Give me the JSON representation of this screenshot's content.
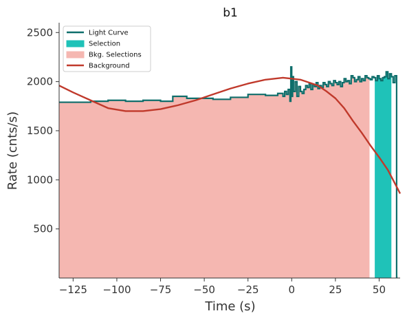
{
  "chart_data": {
    "type": "line",
    "title": "b1",
    "xlabel": "Time (s)",
    "ylabel": "Rate (cnts/s)",
    "xlim": [
      -133,
      62
    ],
    "ylim": [
      0,
      2600
    ],
    "xticks": [
      -125,
      -100,
      -75,
      -50,
      -25,
      0,
      25,
      50
    ],
    "xtick_labels": [
      "−125",
      "−100",
      "−75",
      "−50",
      "−25",
      "0",
      "25",
      "50"
    ],
    "yticks": [
      500,
      1000,
      1500,
      2000,
      2500
    ],
    "ytick_labels": [
      "500",
      "1000",
      "1500",
      "2000",
      "2500"
    ],
    "legend_placement": "top-left",
    "series": [
      {
        "name": "Light Curve",
        "kind": "step",
        "color": "#0e6e6b",
        "x": [
          -133,
          -115,
          -105,
          -95,
          -85,
          -75,
          -68,
          -60,
          -45,
          -35,
          -25,
          -15,
          -8,
          -5,
          -4,
          -3,
          -2,
          -1,
          -0.5,
          0,
          0.5,
          1,
          2,
          3,
          4,
          5,
          6,
          7,
          8,
          9,
          10,
          11,
          12,
          13,
          14,
          15,
          16,
          17,
          18,
          19,
          20,
          21,
          22,
          23,
          24,
          25,
          26,
          27,
          28,
          29,
          30,
          31,
          32,
          33,
          34,
          35,
          36,
          37,
          38,
          39,
          40,
          41,
          42,
          43,
          44,
          45,
          46,
          47,
          48,
          49,
          50,
          51,
          52,
          53,
          54,
          55,
          56,
          57,
          58,
          59,
          60
        ],
        "y": [
          1790,
          1800,
          1810,
          1800,
          1810,
          1800,
          1850,
          1830,
          1820,
          1840,
          1870,
          1860,
          1880,
          1850,
          1900,
          1870,
          1920,
          1800,
          2150,
          1850,
          2050,
          1900,
          2000,
          1850,
          1950,
          1900,
          1880,
          1920,
          1960,
          1940,
          1980,
          1920,
          1970,
          1950,
          1990,
          1930,
          1960,
          1940,
          1990,
          1970,
          1950,
          2000,
          1980,
          1960,
          2010,
          1990,
          1970,
          2000,
          1950,
          1990,
          2030,
          2000,
          2010,
          1980,
          2060,
          2040,
          2000,
          2020,
          2050,
          2000,
          2030,
          2010,
          2060,
          2040,
          2030,
          2020,
          2050,
          2040,
          2010,
          2060,
          2030,
          2010,
          2040,
          2050,
          2100,
          2030,
          2080,
          2050,
          1990,
          2060,
          10
        ]
      },
      {
        "name": "Background",
        "kind": "line",
        "color": "#c0392b",
        "x": [
          -133,
          -125,
          -115,
          -105,
          -95,
          -85,
          -75,
          -65,
          -55,
          -45,
          -35,
          -25,
          -15,
          -5,
          0,
          5,
          10,
          15,
          20,
          25,
          30,
          35,
          40,
          45,
          50,
          55,
          60,
          62
        ],
        "y": [
          1960,
          1890,
          1810,
          1730,
          1700,
          1700,
          1720,
          1760,
          1810,
          1870,
          1930,
          1980,
          2020,
          2040,
          2030,
          2020,
          1990,
          1960,
          1900,
          1830,
          1730,
          1600,
          1480,
          1350,
          1230,
          1100,
          930,
          860
        ]
      }
    ],
    "bkg_selections": {
      "name": "Bkg. Selections",
      "color": "#f5b7b1",
      "ranges": [
        [
          -133,
          44.5
        ]
      ]
    },
    "selection": {
      "name": "Selection",
      "color": "#1fc2b8",
      "ranges": [
        [
          47.5,
          57
        ]
      ]
    },
    "legend": [
      {
        "label": "Light Curve",
        "marker": "line",
        "color": "#0e6e6b"
      },
      {
        "label": "Selection",
        "marker": "patch",
        "color": "#1fc2b8"
      },
      {
        "label": "Bkg. Selections",
        "marker": "patch",
        "color": "#f5b7b1"
      },
      {
        "label": "Background",
        "marker": "line",
        "color": "#c0392b"
      }
    ]
  }
}
